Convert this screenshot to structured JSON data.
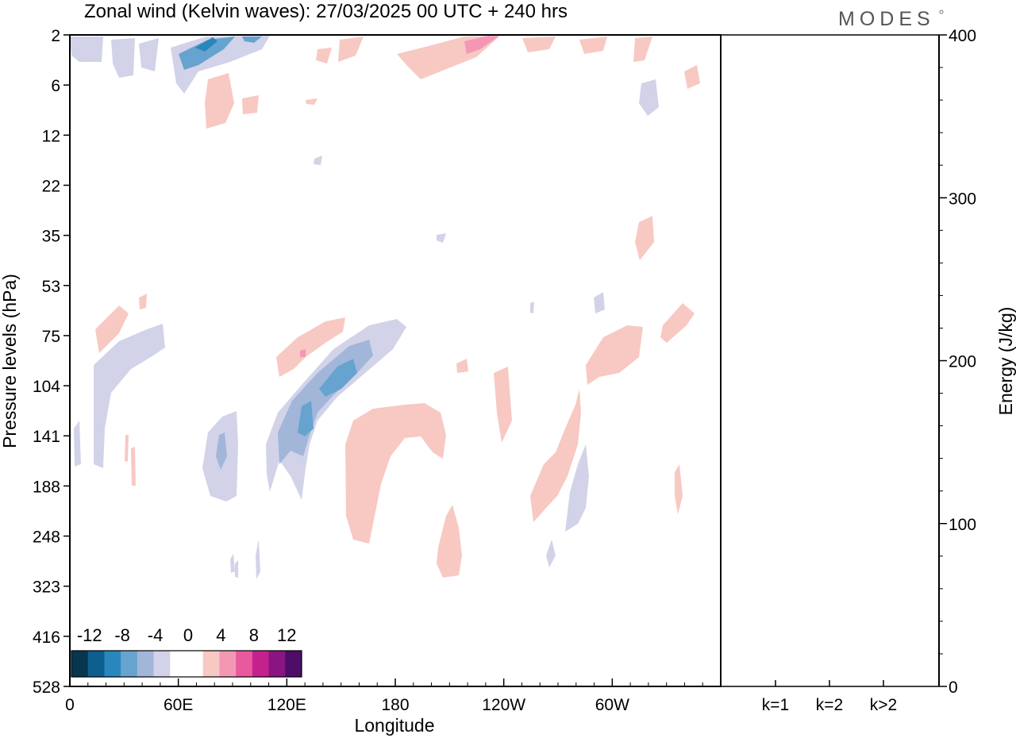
{
  "chart_data": [
    {
      "type": "heatmap",
      "title": "Zonal wind (Kelvin waves):  27/03/2025  00 UTC  + 240 hrs",
      "xlabel": "Longitude",
      "ylabel": "Pressure levels (hPa)",
      "x_ticks": [
        "0",
        "60E",
        "120E",
        "180",
        "120W",
        "60W"
      ],
      "x_tick_values": [
        0,
        60,
        120,
        180,
        240,
        300
      ],
      "xlim": [
        0,
        360
      ],
      "y_ticks": [
        "2",
        "6",
        "12",
        "22",
        "35",
        "53",
        "75",
        "104",
        "141",
        "188",
        "248",
        "323",
        "416",
        "528"
      ],
      "y_inverted": true,
      "colorbar": {
        "labels": [
          "-12",
          "-8",
          "-4",
          "0",
          "4",
          "8",
          "12"
        ],
        "colors": [
          "#08364f",
          "#0c5f8e",
          "#2a87bd",
          "#67a3cf",
          "#a2b6d9",
          "#d2d3e8",
          "#ffffff",
          "#ffffff",
          "#f7c9c2",
          "#f497b5",
          "#e9599e",
          "#c4218d",
          "#8a1482",
          "#4d0d68"
        ]
      },
      "regions": [
        {
          "sign": "negative",
          "level": 1,
          "lon": [
            0,
            55
          ],
          "pressure_hPa": [
            2,
            6
          ]
        },
        {
          "sign": "negative",
          "level": 3,
          "lon": [
            60,
            105
          ],
          "pressure_hPa": [
            2,
            6
          ]
        },
        {
          "sign": "positive",
          "level": 2,
          "lon": [
            215,
            235
          ],
          "pressure_hPa": [
            2,
            4
          ]
        },
        {
          "sign": "positive",
          "level": 1,
          "lon": [
            180,
            320
          ],
          "pressure_hPa": [
            2,
            10
          ]
        },
        {
          "sign": "positive",
          "level": 1,
          "lon": [
            75,
            95
          ],
          "pressure_hPa": [
            6,
            12
          ]
        },
        {
          "sign": "negative",
          "level": 1,
          "lon": [
            315,
            325
          ],
          "pressure_hPa": [
            6,
            10
          ]
        },
        {
          "sign": "positive",
          "level": 1,
          "lon": [
            315,
            325
          ],
          "pressure_hPa": [
            32,
            48
          ]
        },
        {
          "sign": "positive",
          "level": 1,
          "lon": [
            12,
            42
          ],
          "pressure_hPa": [
            62,
            90
          ]
        },
        {
          "sign": "negative",
          "level": 1,
          "lon": [
            5,
            52
          ],
          "pressure_hPa": [
            78,
            178
          ]
        },
        {
          "sign": "negative",
          "level": 1,
          "lon": [
            110,
            185
          ],
          "pressure_hPa": [
            75,
            220
          ]
        },
        {
          "sign": "negative",
          "level": 2,
          "lon": [
            115,
            170
          ],
          "pressure_hPa": [
            85,
            160
          ]
        },
        {
          "sign": "negative",
          "level": 3,
          "lon": [
            125,
            160
          ],
          "pressure_hPa": [
            95,
            150
          ]
        },
        {
          "sign": "positive",
          "level": 1,
          "lon": [
            115,
            150
          ],
          "pressure_hPa": [
            75,
            100
          ]
        },
        {
          "sign": "positive",
          "level": 1,
          "lon": [
            150,
            210
          ],
          "pressure_hPa": [
            128,
            265
          ]
        },
        {
          "sign": "positive",
          "level": 1,
          "lon": [
            205,
            220
          ],
          "pressure_hPa": [
            195,
            310
          ]
        },
        {
          "sign": "positive",
          "level": 1,
          "lon": [
            285,
            325
          ],
          "pressure_hPa": [
            65,
            110
          ]
        },
        {
          "sign": "positive",
          "level": 1,
          "lon": [
            255,
            285
          ],
          "pressure_hPa": [
            108,
            240
          ]
        },
        {
          "sign": "negative",
          "level": 1,
          "lon": [
            270,
            285
          ],
          "pressure_hPa": [
            140,
            245
          ]
        },
        {
          "sign": "negative",
          "level": 1,
          "lon": [
            72,
            95
          ],
          "pressure_hPa": [
            118,
            215
          ]
        },
        {
          "sign": "negative",
          "level": 2,
          "lon": [
            79,
            86
          ],
          "pressure_hPa": [
            128,
            168
          ]
        }
      ]
    },
    {
      "type": "bar",
      "categories": [
        "k=1",
        "k=2",
        "k>2"
      ],
      "values": [
        0,
        0,
        0
      ],
      "ylabel": "Energy (J/kg)",
      "ylim": [
        0,
        400
      ],
      "y_ticks": [
        "0",
        "100",
        "200",
        "300",
        "400"
      ]
    }
  ],
  "logo_text": "MODES"
}
